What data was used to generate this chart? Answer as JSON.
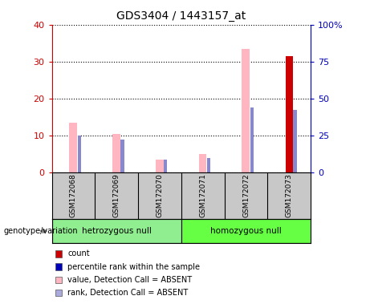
{
  "title": "GDS3404 / 1443157_at",
  "samples": [
    "GSM172068",
    "GSM172069",
    "GSM172070",
    "GSM172071",
    "GSM172072",
    "GSM172073"
  ],
  "genotype_groups": [
    {
      "label": "hetrozygous null",
      "color": "#90EE90",
      "size": 3
    },
    {
      "label": "homozygous null",
      "color": "#66FF44",
      "size": 3
    }
  ],
  "left_ylim": [
    0,
    40
  ],
  "right_ylim": [
    0,
    100
  ],
  "left_yticks": [
    0,
    10,
    20,
    30,
    40
  ],
  "right_yticks": [
    0,
    25,
    50,
    75,
    100
  ],
  "right_yticklabels": [
    "0",
    "25",
    "50",
    "75",
    "100%"
  ],
  "pink_bars": [
    13.5,
    10.5,
    3.5,
    5.0,
    33.5,
    0.0
  ],
  "blue_bars_pct": [
    25.0,
    22.5,
    8.75,
    10.0,
    43.75,
    42.5
  ],
  "red_bars": [
    0,
    0,
    0,
    0,
    0,
    31.5
  ],
  "pink_color": "#FFB6C1",
  "blue_color": "#8888CC",
  "red_color": "#CC0000",
  "bg_color": "#FFFFFF",
  "label_box_color": "#C8C8C8",
  "legend_items": [
    {
      "color": "#CC0000",
      "label": "count"
    },
    {
      "color": "#0000BB",
      "label": "percentile rank within the sample"
    },
    {
      "color": "#FFB6C1",
      "label": "value, Detection Call = ABSENT"
    },
    {
      "color": "#AAAADD",
      "label": "rank, Detection Call = ABSENT"
    }
  ],
  "left_axis_color": "#CC0000",
  "right_axis_color": "#0000BB",
  "genotype_label": "genotype/variation",
  "pink_bar_width": 0.18,
  "blue_bar_width": 0.08,
  "red_bar_width": 0.18
}
